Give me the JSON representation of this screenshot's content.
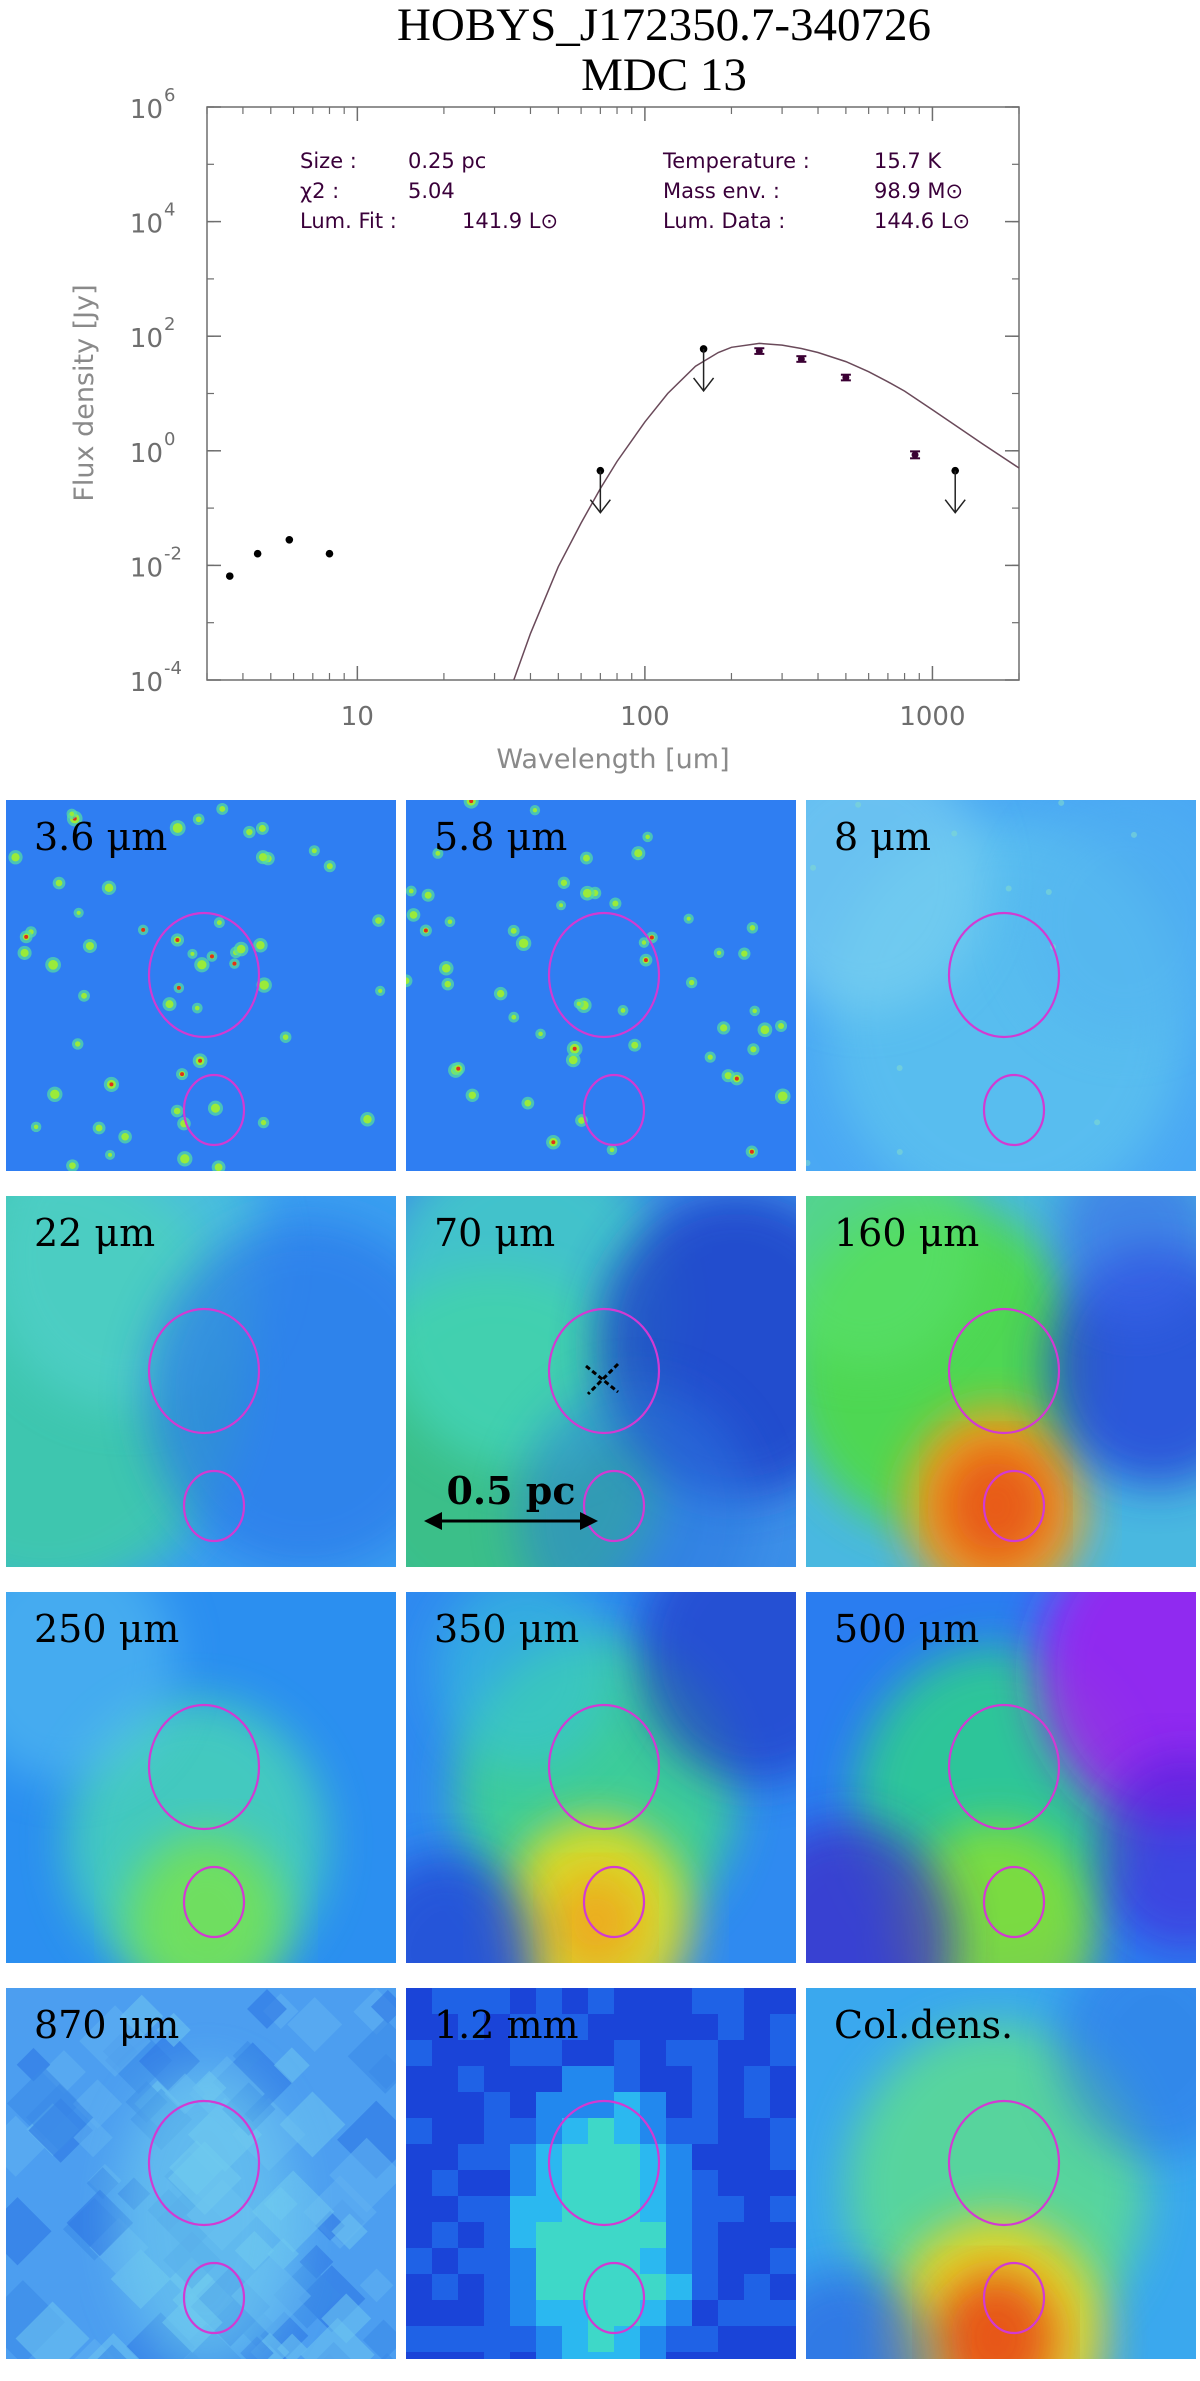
{
  "title_lines": [
    "HOBYS_J172350.7-340726",
    "MDC 13"
  ],
  "chart_data": {
    "type": "scatter",
    "title": "HOBYS_J172350.7-340726 MDC 13",
    "xlabel": "Wavelength [um]",
    "ylabel": "Flux density [Jy]",
    "xscale": "log",
    "yscale": "log",
    "xlim": [
      3,
      2000
    ],
    "ylim": [
      0.0001,
      1000000
    ],
    "xticks": [
      {
        "v": 10,
        "label": "10"
      },
      {
        "v": 100,
        "label": "100"
      },
      {
        "v": 1000,
        "label": "1000"
      }
    ],
    "yticks": [
      {
        "v": 0.0001,
        "base": "10",
        "exp": "-4"
      },
      {
        "v": 0.01,
        "base": "10",
        "exp": "-2"
      },
      {
        "v": 1,
        "base": "10",
        "exp": "0"
      },
      {
        "v": 100,
        "base": "10",
        "exp": "2"
      },
      {
        "v": 10000,
        "base": "10",
        "exp": "4"
      },
      {
        "v": 1000000,
        "base": "10",
        "exp": "6"
      }
    ],
    "points": [
      {
        "x": 3.6,
        "y": 0.0065,
        "kind": "dot"
      },
      {
        "x": 4.5,
        "y": 0.016,
        "kind": "dot"
      },
      {
        "x": 5.8,
        "y": 0.028,
        "kind": "dot"
      },
      {
        "x": 8.0,
        "y": 0.016,
        "kind": "dot"
      },
      {
        "x": 70,
        "y": 0.45,
        "kind": "upper_limit"
      },
      {
        "x": 160,
        "y": 60,
        "kind": "upper_limit"
      },
      {
        "x": 250,
        "y": 55,
        "kind": "errorbar",
        "err": 0.12
      },
      {
        "x": 350,
        "y": 40,
        "kind": "errorbar",
        "err": 0.12
      },
      {
        "x": 500,
        "y": 19,
        "kind": "errorbar",
        "err": 0.12
      },
      {
        "x": 870,
        "y": 0.85,
        "kind": "errorbar",
        "err": 0.15
      },
      {
        "x": 1200,
        "y": 0.45,
        "kind": "upper_limit"
      }
    ],
    "model_curve": {
      "x": [
        35,
        40,
        50,
        60,
        70,
        80,
        100,
        120,
        150,
        180,
        200,
        250,
        300,
        350,
        400,
        500,
        600,
        700,
        800,
        1000,
        1200,
        1500,
        2000
      ],
      "y": [
        0.0001,
        0.00065,
        0.0095,
        0.055,
        0.22,
        0.65,
        3.2,
        10,
        30,
        52,
        64,
        75,
        70,
        61,
        52,
        36,
        24,
        16,
        11,
        5.2,
        2.8,
        1.3,
        0.5
      ]
    },
    "info_left": [
      {
        "label": "Size :",
        "value": "0.25 pc"
      },
      {
        "label": "χ2 :",
        "value": "5.04"
      },
      {
        "label": "Lum. Fit :",
        "value": "141.9 L⊙"
      }
    ],
    "info_right": [
      {
        "label": "Temperature :",
        "value": "15.7 K"
      },
      {
        "label": "Mass env.   :",
        "value": "98.9 M⊙"
      },
      {
        "label": "Lum. Data :",
        "value": "144.6 L⊙"
      }
    ]
  },
  "panels": [
    {
      "label": "3.6 μm",
      "map": "stars",
      "bg": "#2f7ef2"
    },
    {
      "label": "5.8 μm",
      "map": "stars",
      "bg": "#2f7ef2"
    },
    {
      "label": "8 μm",
      "map": "diffuse",
      "bg": "#4aa8f4"
    },
    {
      "label": "22 μm",
      "map": "diffuse",
      "bg": "#3a9ef0"
    },
    {
      "label": "70 μm",
      "map": "diffuse",
      "bg": "#3c8fe8"
    },
    {
      "label": "160 μm",
      "map": "diffuse",
      "bg": "#49b8e0"
    },
    {
      "label": "250 μm",
      "map": "diffuse",
      "bg": "#2b8ff0"
    },
    {
      "label": "350 μm",
      "map": "diffuse",
      "bg": "#2f8af0"
    },
    {
      "label": "500 μm",
      "map": "diffuse",
      "bg": "#2a7df0"
    },
    {
      "label": "870 μm",
      "map": "blocky",
      "bg": "#4c9ef0"
    },
    {
      "label": "1.2 mm",
      "map": "pixel",
      "bg": "#2160ea"
    },
    {
      "label": "Col.dens.",
      "map": "diffuse",
      "bg": "#3aa8ee"
    }
  ],
  "scale_bar": {
    "label": "0.5 pc",
    "panel": 4
  },
  "marker_panel": 4,
  "colors": {
    "ellipse": "#d23ad2",
    "curve": "#6a4a5a",
    "points": "#000000",
    "errorbar": "#3a0033"
  }
}
